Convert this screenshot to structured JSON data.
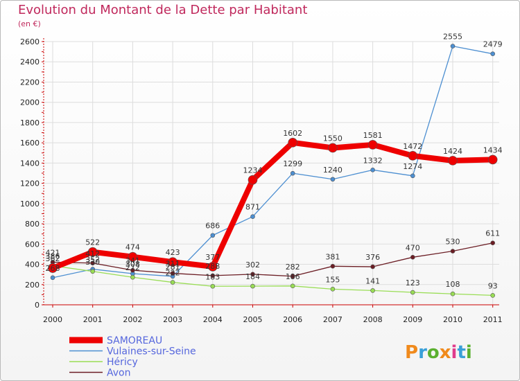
{
  "title": "Evolution du Montant de la Dette par Habitant",
  "subtitle": "(en €)",
  "logo": "Proxiti",
  "chart_data": {
    "type": "line",
    "x": [
      "2000",
      "2001",
      "2002",
      "2003",
      "2004",
      "2005",
      "2006",
      "2007",
      "2008",
      "2009",
      "2010",
      "2011"
    ],
    "ylim": [
      0,
      2600
    ],
    "yticks": [
      0,
      200,
      400,
      600,
      800,
      1000,
      1200,
      1400,
      1600,
      1800,
      2000,
      2200,
      2400,
      2600
    ],
    "grid": true,
    "legend_position": "bottom-left",
    "series": [
      {
        "name": "Vulaines-sur-Seine",
        "color": "#4d8fd1",
        "values": [
          268,
          352,
          308,
          281,
          686,
          871,
          1299,
          1240,
          1332,
          1274,
          2555,
          2479
        ]
      },
      {
        "name": "Héricy",
        "color": "#99dd55",
        "values": [
          386,
          330,
          272,
          222,
          183,
          184,
          186,
          155,
          141,
          123,
          108,
          93
        ]
      },
      {
        "name": "Avon",
        "color": "#6b1d24",
        "values": [
          421,
          412,
          341,
          311,
          288,
          302,
          282,
          381,
          376,
          470,
          530,
          611
        ]
      },
      {
        "name": "SAMOREAU",
        "color": "#ee0000",
        "values": [
          362,
          522,
          474,
          423,
          377,
          1234,
          1602,
          1550,
          1581,
          1472,
          1424,
          1434
        ]
      }
    ],
    "legend_order": [
      "SAMOREAU",
      "Vulaines-sur-Seine",
      "Héricy",
      "Avon"
    ]
  }
}
